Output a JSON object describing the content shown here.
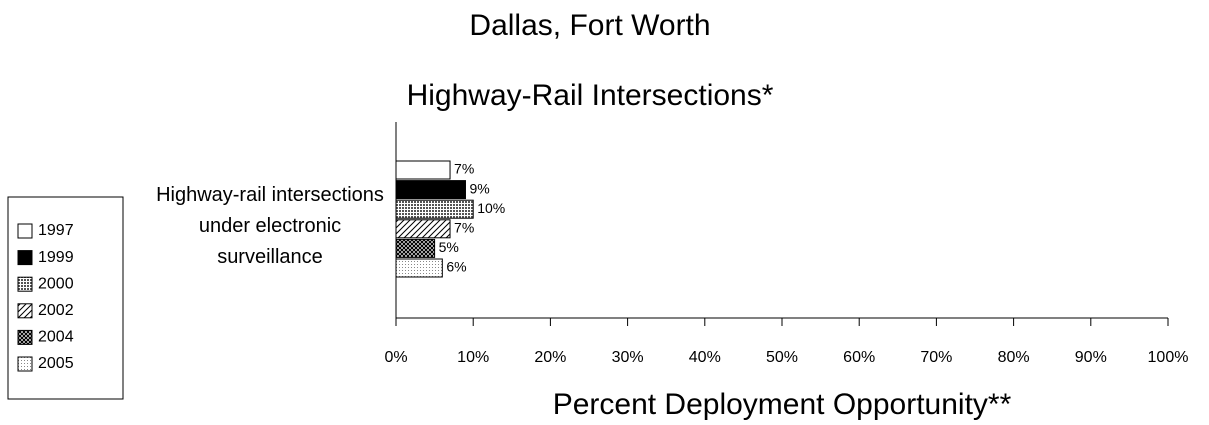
{
  "chart_data": {
    "type": "bar",
    "orientation": "horizontal",
    "title": "Dallas, Fort Worth",
    "subtitle": "Highway-Rail Intersections*",
    "xlabel": "Percent Deployment Opportunity**",
    "categories": [
      "Highway-rail intersections under electronic surveillance"
    ],
    "series": [
      {
        "name": "1997",
        "fill": "white",
        "values": [
          7
        ],
        "value_labels": [
          "7%"
        ]
      },
      {
        "name": "1999",
        "fill": "black",
        "values": [
          9
        ],
        "value_labels": [
          "9%"
        ]
      },
      {
        "name": "2000",
        "fill": "dots-dense",
        "values": [
          10
        ],
        "value_labels": [
          "10%"
        ]
      },
      {
        "name": "2002",
        "fill": "hatch",
        "values": [
          7
        ],
        "value_labels": [
          "7%"
        ]
      },
      {
        "name": "2004",
        "fill": "crosshatch",
        "values": [
          5
        ],
        "value_labels": [
          "5%"
        ]
      },
      {
        "name": "2005",
        "fill": "dots-light",
        "values": [
          6
        ],
        "value_labels": [
          "6%"
        ]
      }
    ],
    "xlim": [
      0,
      100
    ],
    "xticks": [
      {
        "value": 0,
        "label": "0%"
      },
      {
        "value": 10,
        "label": "10%"
      },
      {
        "value": 20,
        "label": "20%"
      },
      {
        "value": 30,
        "label": "30%"
      },
      {
        "value": 40,
        "label": "40%"
      },
      {
        "value": 50,
        "label": "50%"
      },
      {
        "value": 60,
        "label": "60%"
      },
      {
        "value": 70,
        "label": "70%"
      },
      {
        "value": 80,
        "label": "80%"
      },
      {
        "value": 90,
        "label": "90%"
      },
      {
        "value": 100,
        "label": "100%"
      }
    ],
    "grid": false,
    "legend": "left"
  }
}
